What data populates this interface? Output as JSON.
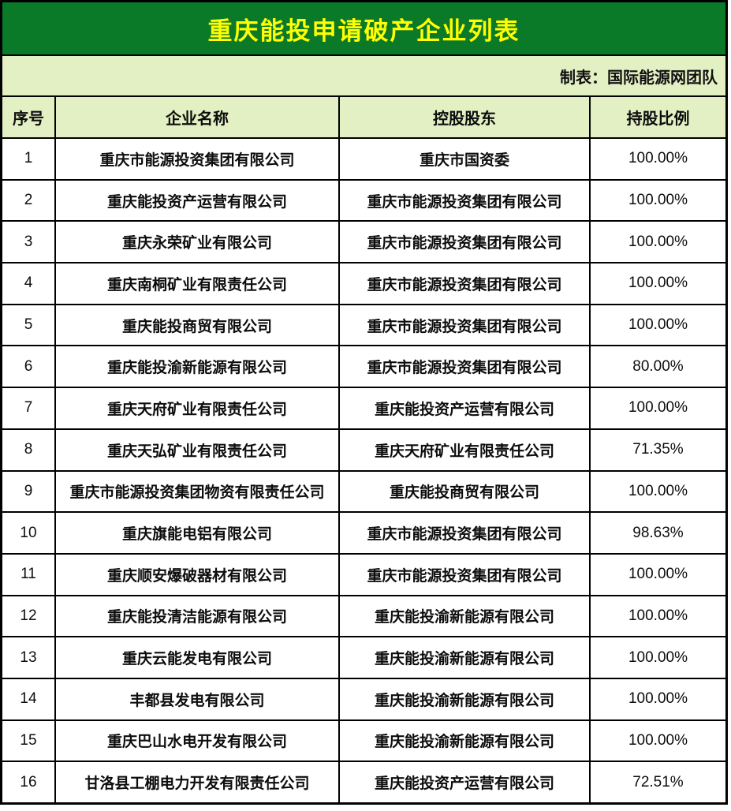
{
  "title": "重庆能投申请破产企业列表",
  "credit": "制表：国际能源网团队",
  "colors": {
    "title_bg": "#0B7A28",
    "title_text": "#FFFF00",
    "panel_bg": "#E3F0C3",
    "credit_text": "#101010",
    "border": "#000000"
  },
  "table": {
    "headers": [
      "序号",
      "企业名称",
      "控股股东",
      "持股比例"
    ],
    "rows": [
      {
        "no": "1",
        "company": "重庆市能源投资集团有限公司",
        "shareholder": "重庆市国资委",
        "ratio": "100.00%"
      },
      {
        "no": "2",
        "company": "重庆能投资产运营有限公司",
        "shareholder": "重庆市能源投资集团有限公司",
        "ratio": "100.00%"
      },
      {
        "no": "3",
        "company": "重庆永荣矿业有限公司",
        "shareholder": "重庆市能源投资集团有限公司",
        "ratio": "100.00%"
      },
      {
        "no": "4",
        "company": "重庆南桐矿业有限责任公司",
        "shareholder": "重庆市能源投资集团有限公司",
        "ratio": "100.00%"
      },
      {
        "no": "5",
        "company": "重庆能投商贸有限公司",
        "shareholder": "重庆市能源投资集团有限公司",
        "ratio": "100.00%"
      },
      {
        "no": "6",
        "company": "重庆能投渝新能源有限公司",
        "shareholder": "重庆市能源投资集团有限公司",
        "ratio": "80.00%"
      },
      {
        "no": "7",
        "company": "重庆天府矿业有限责任公司",
        "shareholder": "重庆能投资产运营有限公司",
        "ratio": "100.00%"
      },
      {
        "no": "8",
        "company": "重庆天弘矿业有限责任公司",
        "shareholder": "重庆天府矿业有限责任公司",
        "ratio": "71.35%"
      },
      {
        "no": "9",
        "company": "重庆市能源投资集团物资有限责任公司",
        "shareholder": "重庆能投商贸有限公司",
        "ratio": "100.00%"
      },
      {
        "no": "10",
        "company": "重庆旗能电铝有限公司",
        "shareholder": "重庆市能源投资集团有限公司",
        "ratio": "98.63%"
      },
      {
        "no": "11",
        "company": "重庆顺安爆破器材有限公司",
        "shareholder": "重庆市能源投资集团有限公司",
        "ratio": "100.00%"
      },
      {
        "no": "12",
        "company": "重庆能投清洁能源有限公司",
        "shareholder": "重庆能投渝新能源有限公司",
        "ratio": "100.00%"
      },
      {
        "no": "13",
        "company": "重庆云能发电有限公司",
        "shareholder": "重庆能投渝新能源有限公司",
        "ratio": "100.00%"
      },
      {
        "no": "14",
        "company": "丰都县发电有限公司",
        "shareholder": "重庆能投渝新能源有限公司",
        "ratio": "100.00%"
      },
      {
        "no": "15",
        "company": "重庆巴山水电开发有限公司",
        "shareholder": "重庆能投渝新能源有限公司",
        "ratio": "100.00%"
      },
      {
        "no": "16",
        "company": "甘洛县工棚电力开发有限责任公司",
        "shareholder": "重庆能投资产运营有限公司",
        "ratio": "72.51%"
      }
    ]
  }
}
